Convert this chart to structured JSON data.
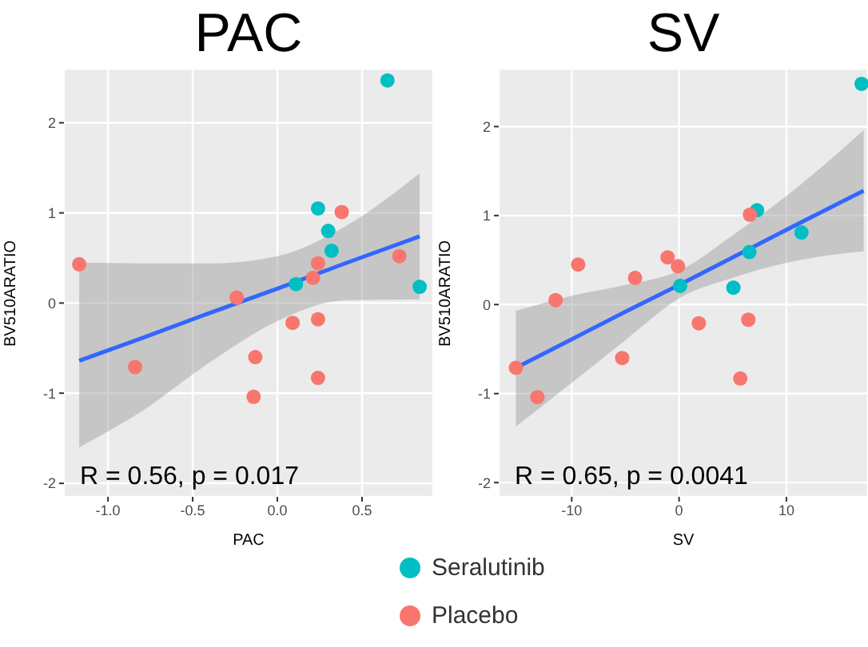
{
  "chart_data": [
    {
      "type": "scatter",
      "title": "PAC",
      "xlabel": "PAC",
      "ylabel": "BV510ARATIO",
      "annotations": [
        "R = 0.56, p = 0.017"
      ],
      "xlim": [
        -1.26,
        0.92
      ],
      "xticks": [
        {
          "value": -1,
          "label": "-1.0"
        },
        {
          "value": -0.5,
          "label": "-0.5"
        },
        {
          "value": 0,
          "label": "0.0"
        },
        {
          "value": 0.5,
          "label": "0.5"
        }
      ],
      "ylim": [
        -2.15,
        2.6
      ],
      "yticks": [
        -2,
        -1,
        0,
        1,
        2
      ],
      "grid": true,
      "marker": "circle",
      "legend": "bottom",
      "series": [
        {
          "name": "Seralutinib",
          "color": "#00bfc4",
          "x": [
            0.65,
            0.24,
            0.3,
            0.32,
            0.11,
            0.84
          ],
          "values": [
            2.47,
            1.05,
            0.8,
            0.58,
            0.21,
            0.18
          ]
        },
        {
          "name": "Placebo",
          "color": "#f8766d",
          "x": [
            -1.17,
            0.38,
            0.72,
            0.24,
            0.21,
            -0.24,
            0.09,
            0.24,
            -0.13,
            -0.84,
            0.24,
            -0.14
          ],
          "values": [
            0.43,
            1.01,
            0.52,
            0.44,
            0.28,
            0.06,
            -0.22,
            -0.18,
            -0.6,
            -0.71,
            -0.83,
            -1.04
          ]
        },
        {
          "type": "line",
          "marker": "none",
          "color": "#3366ff",
          "x": [
            -1.17,
            -0.8,
            -0.4,
            0,
            0.4,
            0.84
          ],
          "values": [
            -0.64,
            -0.39,
            -0.11,
            0.16,
            0.44,
            0.74
          ],
          "lower": [
            -1.6,
            -1.2,
            -0.66,
            -0.2,
            0.03,
            0.04
          ],
          "upper": [
            0.45,
            0.44,
            0.44,
            0.52,
            0.85,
            1.44
          ]
        }
      ]
    },
    {
      "type": "scatter",
      "title": "SV",
      "xlabel": "SV",
      "ylabel": "BV510ARATIO",
      "annotations": [
        "R = 0.65, p = 0.0041"
      ],
      "xlim": [
        -16.8,
        17.6
      ],
      "xticks": [
        -10,
        0,
        10
      ],
      "ylim": [
        -2.16,
        2.65
      ],
      "yticks": [
        -2,
        -1,
        0,
        1,
        2
      ],
      "grid": true,
      "marker": "circle",
      "series": [
        {
          "color": "#00bfc4",
          "x": [
            17,
            7.26,
            11.4,
            6.55,
            0.1,
            5.06
          ],
          "values": [
            2.48,
            1.06,
            0.81,
            0.59,
            0.21,
            0.19
          ]
        },
        {
          "color": "#f8766d",
          "x": [
            6.6,
            -9.4,
            -1.07,
            -0.1,
            -4.1,
            -11.5,
            1.84,
            6.45,
            -5.3,
            5.7,
            -15.2,
            -13.2
          ],
          "values": [
            1.01,
            0.45,
            0.53,
            0.43,
            0.3,
            0.05,
            -0.21,
            -0.17,
            -0.6,
            -0.83,
            -0.71,
            -1.04
          ]
        },
        {
          "type": "line",
          "marker": "none",
          "color": "#3366ff",
          "x": [
            -15.2,
            -10,
            -5,
            0,
            5,
            10,
            17.2
          ],
          "values": [
            -0.71,
            -0.39,
            -0.08,
            0.22,
            0.53,
            0.84,
            1.28
          ],
          "lower": [
            -1.37,
            -0.88,
            -0.4,
            0.07,
            0.3,
            0.47,
            0.6
          ],
          "upper": [
            -0.07,
            0.1,
            0.22,
            0.38,
            0.78,
            1.22,
            1.96
          ]
        }
      ]
    }
  ]
}
